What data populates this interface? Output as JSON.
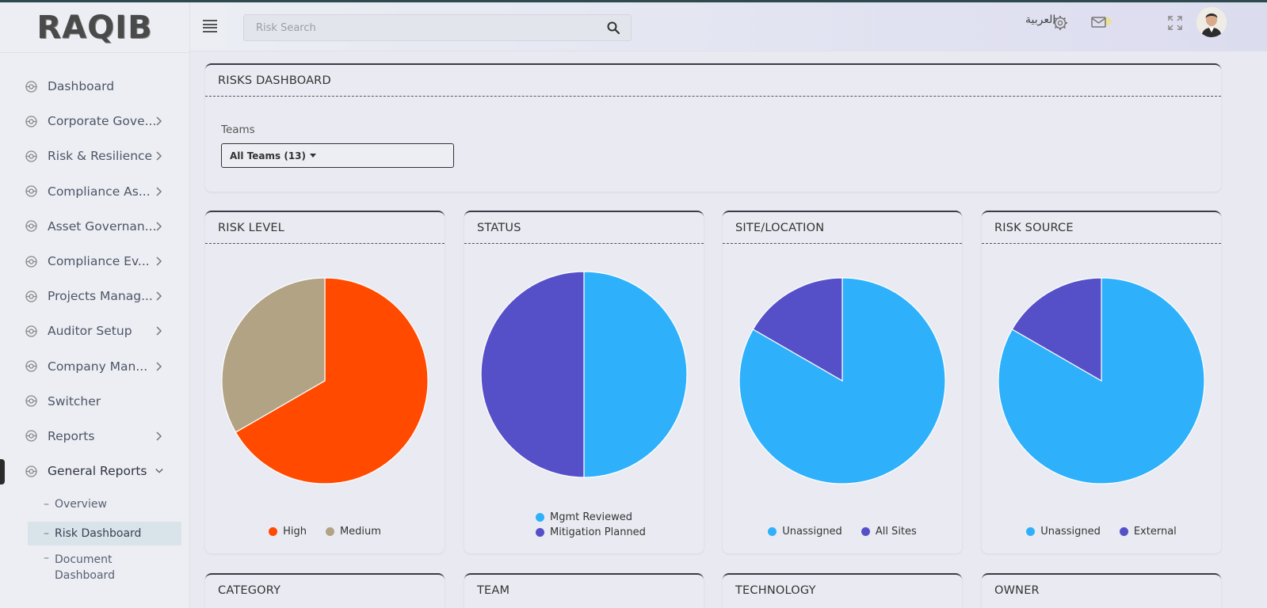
{
  "logo": "RAQIB",
  "sidebar": {
    "items": [
      {
        "label": "Dashboard",
        "icon": "dashboard-icon",
        "chevron": false
      },
      {
        "label": "Corporate Gove...",
        "icon": "corporate-icon",
        "chevron": true
      },
      {
        "label": "Risk & Resilience",
        "icon": "risk-icon",
        "chevron": true
      },
      {
        "label": "Compliance As...",
        "icon": "compliance-icon",
        "chevron": true
      },
      {
        "label": "Asset Governan...",
        "icon": "asset-icon",
        "chevron": true
      },
      {
        "label": "Compliance Ev...",
        "icon": "compliance-eval-icon",
        "chevron": true
      },
      {
        "label": "Projects Manag...",
        "icon": "projects-icon",
        "chevron": true
      },
      {
        "label": "Auditor Setup",
        "icon": "auditor-icon",
        "chevron": true
      },
      {
        "label": "Company Man...",
        "icon": "company-icon",
        "chevron": true
      },
      {
        "label": "Switcher",
        "icon": "switcher-icon",
        "chevron": false
      },
      {
        "label": "Reports",
        "icon": "reports-icon",
        "chevron": true
      },
      {
        "label": "General Reports",
        "icon": "general-reports-icon",
        "chevron": "down"
      }
    ],
    "sub_items": [
      {
        "label": "Overview"
      },
      {
        "label": "Risk Dashboard"
      },
      {
        "label": "Document Dashboard"
      }
    ],
    "sub_item_2_lines": [
      "Document",
      "Dashboard"
    ]
  },
  "header": {
    "search_placeholder": "Risk Search",
    "language": "العربية"
  },
  "dashboard": {
    "title": "RISKS DASHBOARD",
    "teams_label": "Teams",
    "teams_value": "All Teams (13)"
  },
  "colors": {
    "orange": "#ff4a00",
    "tan": "#b2a385",
    "blue": "#2eb0fb",
    "purple": "#5650c8"
  },
  "chart_data": [
    {
      "type": "pie",
      "title": "RISK LEVEL",
      "categories": [
        "High",
        "Medium"
      ],
      "values": [
        2,
        1
      ],
      "colors": [
        "#ff4a00",
        "#b2a385"
      ]
    },
    {
      "type": "pie",
      "title": "STATUS",
      "categories": [
        "Mgmt Reviewed",
        "Mitigation Planned"
      ],
      "values": [
        1,
        1
      ],
      "colors": [
        "#2eb0fb",
        "#5650c8"
      ]
    },
    {
      "type": "pie",
      "title": "SITE/LOCATION",
      "categories": [
        "Unassigned",
        "All Sites"
      ],
      "values": [
        5,
        1
      ],
      "colors": [
        "#2eb0fb",
        "#5650c8"
      ]
    },
    {
      "type": "pie",
      "title": "RISK SOURCE",
      "categories": [
        "Unassigned",
        "External"
      ],
      "values": [
        5,
        1
      ],
      "colors": [
        "#2eb0fb",
        "#5650c8"
      ]
    }
  ],
  "bottom_cards": [
    "CATEGORY",
    "TEAM",
    "TECHNOLOGY",
    "OWNER"
  ]
}
